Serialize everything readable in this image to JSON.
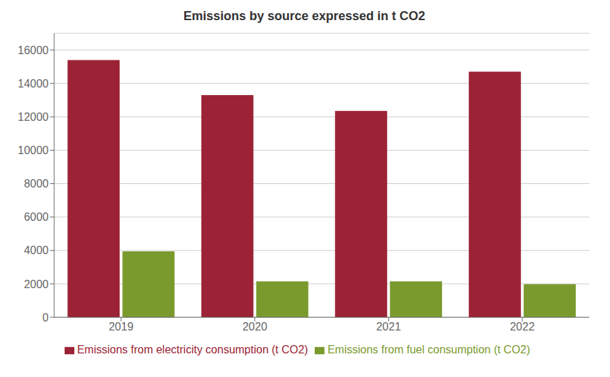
{
  "chart_data": {
    "type": "bar",
    "title": "Emissions by source expressed in t CO2",
    "categories": [
      "2019",
      "2020",
      "2021",
      "2022"
    ],
    "series": [
      {
        "name": "Emissions from electricity consumption (t CO2)",
        "color": "#9b2335",
        "values": [
          15400,
          13300,
          12350,
          14700
        ]
      },
      {
        "name": "Emissions from fuel consumption (t CO2)",
        "color": "#7a9a2e",
        "values": [
          3950,
          2150,
          2150,
          1980
        ]
      }
    ],
    "ylim": [
      0,
      17000
    ],
    "yticks": [
      0,
      2000,
      4000,
      6000,
      8000,
      10000,
      12000,
      14000,
      16000
    ],
    "grid": true,
    "legend": "bottom"
  }
}
